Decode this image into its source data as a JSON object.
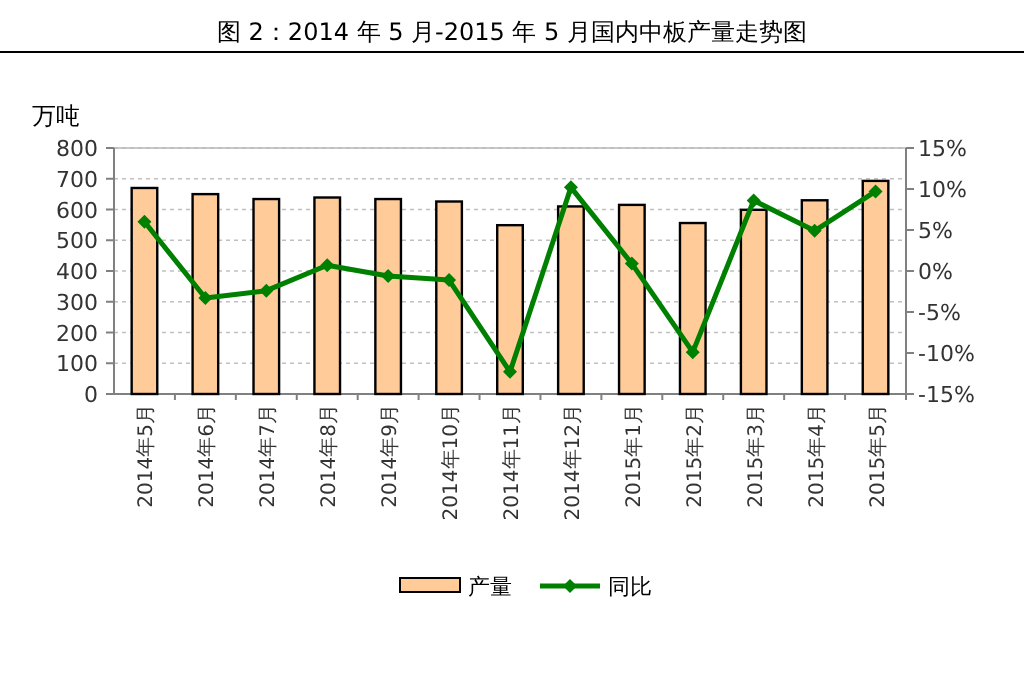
{
  "chart_data": {
    "type": "bar",
    "title": "图 2：2014 年 5 月-2015 年 5 月国内中板产量走势图",
    "ylabel": "万吨",
    "categories": [
      "2014年5月",
      "2014年6月",
      "2014年7月",
      "2014年8月",
      "2014年9月",
      "2014年10月",
      "2014年11月",
      "2014年12月",
      "2015年1月",
      "2015年2月",
      "2015年3月",
      "2015年4月",
      "2015年5月"
    ],
    "series": [
      {
        "name": "产量",
        "color": "#ffcc99",
        "values": [
          670,
          650,
          634,
          639,
          634,
          626,
          549,
          610,
          615,
          556,
          599,
          630,
          693
        ]
      },
      {
        "name": "同比",
        "type": "line",
        "axis": "y2",
        "color": "#008000",
        "values": [
          6.0,
          -3.3,
          -2.4,
          0.7,
          -0.6,
          -1.1,
          -12.3,
          10.2,
          0.9,
          -9.9,
          8.6,
          4.9,
          9.7
        ]
      }
    ],
    "ylim": [
      0,
      800
    ],
    "yticks": [
      0,
      100,
      200,
      300,
      400,
      500,
      600,
      700,
      800
    ],
    "y2lim": [
      -15,
      15
    ],
    "y2ticks": [
      {
        "value": -15,
        "label": "-15%"
      },
      {
        "value": -10,
        "label": "-10%"
      },
      {
        "value": -5,
        "label": "-5%"
      },
      {
        "value": 0,
        "label": "0%"
      },
      {
        "value": 5,
        "label": "5%"
      },
      {
        "value": 10,
        "label": "10%"
      },
      {
        "value": 15,
        "label": "15%"
      }
    ],
    "grid": "y",
    "legend": "bottom",
    "marker": "diamond",
    "line_style": "solid"
  }
}
